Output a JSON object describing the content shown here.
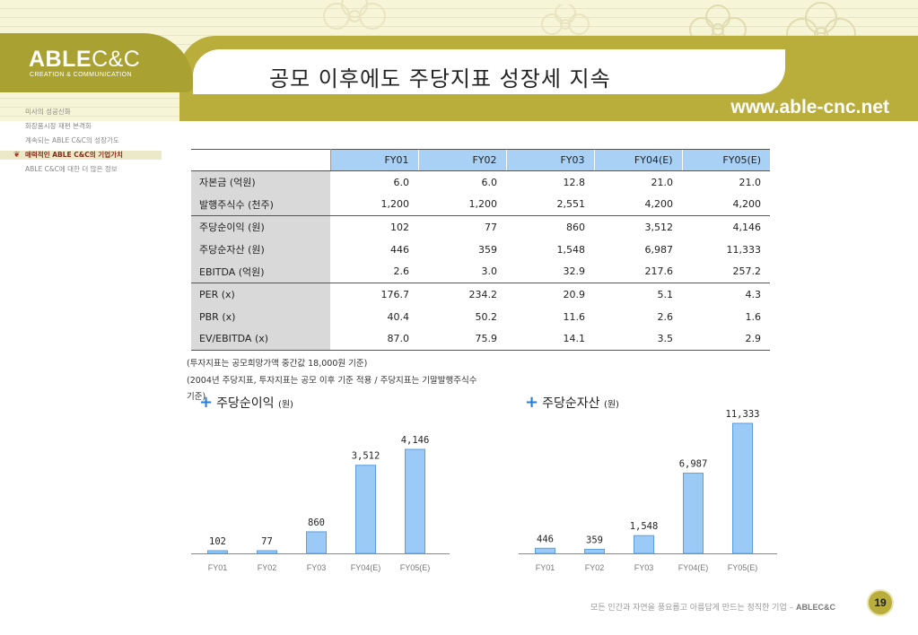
{
  "brand": {
    "logo_main": "ABLE",
    "logo_cc": "C&C",
    "logo_sub": "CREATION & COMMUNICATION",
    "url": "www.able-cnc.net"
  },
  "page_title": "공모 이후에도 주당지표 성장세 지속",
  "sidebar": {
    "items": [
      {
        "label": "미사의 성공신화"
      },
      {
        "label": "화장품시장 재편 본격화"
      },
      {
        "label": "계속되는 ABLE C&C의 성장가도"
      },
      {
        "label": "매력적인 ABLE C&C의 기업가치",
        "active": true
      },
      {
        "label": "ABLE C&C에 대한 더 많은 정보"
      }
    ]
  },
  "table": {
    "headers": [
      "FY01",
      "FY02",
      "FY03",
      "FY04(E)",
      "FY05(E)"
    ],
    "rows": [
      {
        "label": "자본금 (억원)",
        "values": [
          "6.0",
          "6.0",
          "12.8",
          "21.0",
          "21.0"
        ]
      },
      {
        "label": "발행주식수 (천주)",
        "values": [
          "1,200",
          "1,200",
          "2,551",
          "4,200",
          "4,200"
        ]
      },
      {
        "label": "주당순이익 (원)",
        "values": [
          "102",
          "77",
          "860",
          "3,512",
          "4,146"
        ]
      },
      {
        "label": "주당순자산 (원)",
        "values": [
          "446",
          "359",
          "1,548",
          "6,987",
          "11,333"
        ]
      },
      {
        "label": "EBITDA (억원)",
        "values": [
          "2.6",
          "3.0",
          "32.9",
          "217.6",
          "257.2"
        ]
      },
      {
        "label": "PER (x)",
        "values": [
          "176.7",
          "234.2",
          "20.9",
          "5.1",
          "4.3"
        ]
      },
      {
        "label": "PBR (x)",
        "values": [
          "40.4",
          "50.2",
          "11.6",
          "2.6",
          "1.6"
        ]
      },
      {
        "label": "EV/EBITDA (x)",
        "values": [
          "87.0",
          "75.9",
          "14.1",
          "3.5",
          "2.9"
        ]
      }
    ]
  },
  "notes": {
    "line1": "(투자지표는 공모희망가액 중간값 18,000원 기준)",
    "line2": "(2004년 주당지표, 투자지표는 공모 이후 기준 적용 / 주당지표는 기말발행주식수",
    "line3": "기준)"
  },
  "footer": {
    "tagline": "모든 인간과 자연을 풍요롭고 아름답게 만드는 정직한 기업 – ",
    "brand": "ABLEC&C",
    "page_number": "19"
  },
  "chart_data": [
    {
      "type": "bar",
      "title": "주당순이익",
      "unit": "(원)",
      "categories": [
        "FY01",
        "FY02",
        "FY03",
        "FY04(E)",
        "FY05(E)"
      ],
      "values": [
        102,
        77,
        860,
        3512,
        4146
      ],
      "labels": [
        "102",
        "77",
        "860",
        "3,512",
        "4,146"
      ],
      "color": "#9ccaf6",
      "stroke": "#5a9ee0"
    },
    {
      "type": "bar",
      "title": "주당순자산",
      "unit": "(원)",
      "categories": [
        "FY01",
        "FY02",
        "FY03",
        "FY04(E)",
        "FY05(E)"
      ],
      "values": [
        446,
        359,
        1548,
        6987,
        11333
      ],
      "labels": [
        "446",
        "359",
        "1,548",
        "6,987",
        "11,333"
      ],
      "color": "#9ccaf6",
      "stroke": "#5a9ee0"
    }
  ]
}
